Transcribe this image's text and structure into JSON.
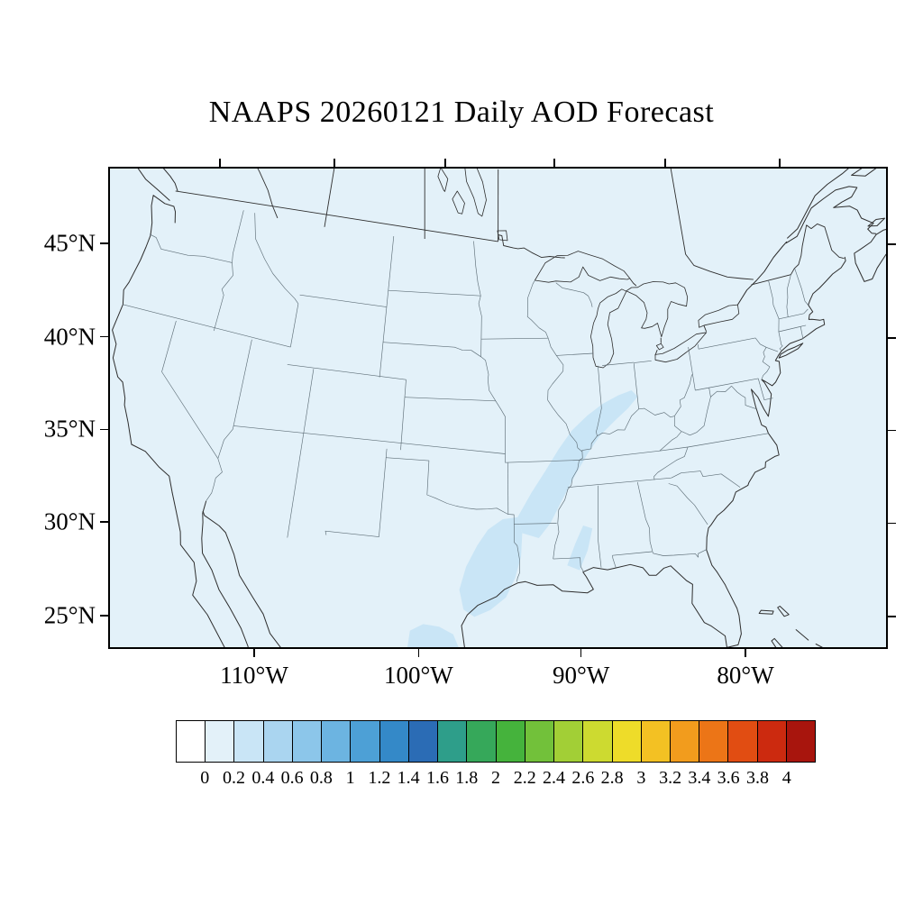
{
  "title": "NAAPS 20260121 Daily AOD Forecast",
  "map": {
    "lat_labels": [
      "45°N",
      "40°N",
      "35°N",
      "30°N",
      "25°N"
    ],
    "lon_labels": [
      "110°W",
      "100°W",
      "90°W",
      "80°W"
    ]
  },
  "colorbar": {
    "tick_labels": [
      "0",
      "0.2",
      "0.4",
      "0.6",
      "0.8",
      "1",
      "1.2",
      "1.4",
      "1.6",
      "1.8",
      "2",
      "2.2",
      "2.4",
      "2.6",
      "2.8",
      "3",
      "3.2",
      "3.4",
      "3.6",
      "3.8",
      "4"
    ],
    "colors": [
      "#ffffff",
      "#e3f1f9",
      "#c9e5f6",
      "#aad5f0",
      "#8cc6ea",
      "#6cb4e1",
      "#4da0d6",
      "#3489c8",
      "#2b6cb5",
      "#2e9e8a",
      "#36a85a",
      "#45b33c",
      "#72c13a",
      "#a2cf36",
      "#cdda30",
      "#eedc29",
      "#f3c123",
      "#f29c1d",
      "#ec7517",
      "#e14d12",
      "#cc2a0f",
      "#a8150d"
    ]
  },
  "chart_data": {
    "type": "heatmap",
    "title": "NAAPS 20260121 Daily AOD Forecast",
    "model": "NAAPS",
    "forecast_date": "20260121",
    "variable": "Daily AOD Forecast (aerosol optical depth)",
    "region": "Continental United States (Lambert conformal view)",
    "lat_ticks": [
      45,
      40,
      35,
      30,
      25
    ],
    "lon_ticks": [
      -110,
      -100,
      -90,
      -80
    ],
    "colorbar_boundaries": [
      0,
      0.2,
      0.4,
      0.6,
      0.8,
      1,
      1.2,
      1.4,
      1.6,
      1.8,
      2,
      2.2,
      2.4,
      2.6,
      2.8,
      3,
      3.2,
      3.4,
      3.6,
      3.8,
      4
    ],
    "colorbar_colors": [
      "#ffffff",
      "#e3f1f9",
      "#c9e5f6",
      "#aad5f0",
      "#8cc6ea",
      "#6cb4e1",
      "#4da0d6",
      "#3489c8",
      "#2b6cb5",
      "#2e9e8a",
      "#36a85a",
      "#45b33c",
      "#72c13a",
      "#a2cf36",
      "#cdda30",
      "#eedc29",
      "#f3c123",
      "#f29c1d",
      "#ec7517",
      "#e14d12",
      "#cc2a0f",
      "#a8150d"
    ],
    "field_summary": {
      "background_aod": "0 to 0.2 over nearly the whole domain",
      "aod_0.2_to_0.4_regions": [
        "eastern Texas into western Louisiana and Arkansas",
        "diagonal band from Arkansas northeast across Missouri, Illinois and Indiana to Ohio",
        "southern Texas and northeastern Mexico",
        "central Mississippi"
      ],
      "max_aod_category": "0.2 to 0.4"
    },
    "legend_position": "bottom",
    "grid": false
  }
}
